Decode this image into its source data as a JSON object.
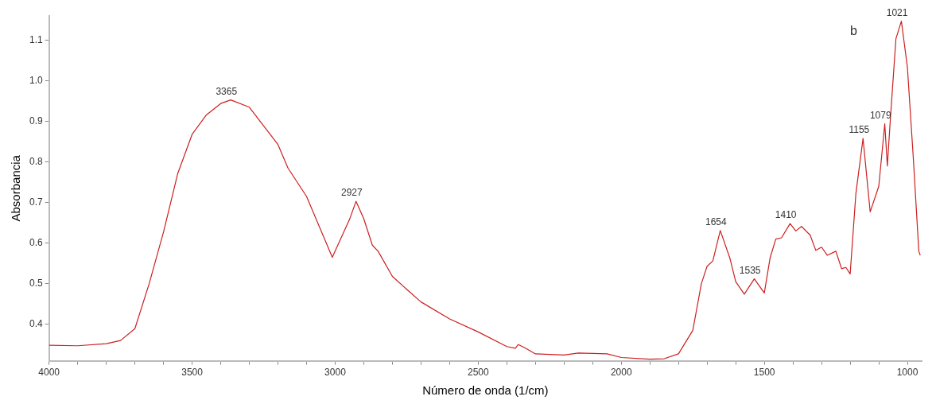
{
  "chart_data": {
    "type": "line",
    "xlabel": "Número de onda (1/cm)",
    "ylabel": "Absorbancia",
    "xlim": [
      4000,
      950
    ],
    "ylim": [
      0.31,
      1.16
    ],
    "xticks": [
      4000,
      {
        "value": 3900,
        "label": null
      },
      {
        "value": 3800,
        "label": null
      },
      {
        "value": 3700,
        "label": null
      },
      {
        "value": 3600,
        "label": null
      },
      3500,
      {
        "value": 3400,
        "label": null
      },
      {
        "value": 3300,
        "label": null
      },
      {
        "value": 3200,
        "label": null
      },
      {
        "value": 3100,
        "label": null
      },
      3000,
      {
        "value": 2900,
        "label": null
      },
      {
        "value": 2800,
        "label": null
      },
      {
        "value": 2700,
        "label": null
      },
      {
        "value": 2600,
        "label": null
      },
      2500,
      {
        "value": 2400,
        "label": null
      },
      {
        "value": 2300,
        "label": null
      },
      {
        "value": 2200,
        "label": null
      },
      {
        "value": 2100,
        "label": null
      },
      2000,
      {
        "value": 1900,
        "label": null
      },
      {
        "value": 1800,
        "label": null
      },
      {
        "value": 1700,
        "label": null
      },
      {
        "value": 1600,
        "label": null
      },
      1500,
      {
        "value": 1400,
        "label": null
      },
      {
        "value": 1300,
        "label": null
      },
      {
        "value": 1200,
        "label": null
      },
      {
        "value": 1100,
        "label": null
      },
      1000
    ],
    "yticks": [
      0.4,
      0.5,
      0.6,
      0.7,
      0.8,
      0.9,
      {
        "value": 1,
        "label": "1.0"
      },
      1.1
    ],
    "marker": "none",
    "line_style": "solid",
    "grid": false,
    "legend": false,
    "series": [
      {
        "color": "#cc1f1f",
        "x": [
          4000,
          3900,
          3800,
          3750,
          3700,
          3650,
          3600,
          3550,
          3500,
          3450,
          3400,
          3365,
          3300,
          3200,
          3165,
          3100,
          3010,
          2950,
          2927,
          2900,
          2870,
          2850,
          2800,
          2750,
          2700,
          2600,
          2500,
          2400,
          2370,
          2360,
          2340,
          2300,
          2200,
          2150,
          2050,
          2000,
          1900,
          1850,
          1800,
          1750,
          1720,
          1700,
          1680,
          1654,
          1620,
          1600,
          1570,
          1535,
          1500,
          1480,
          1460,
          1440,
          1410,
          1390,
          1370,
          1340,
          1320,
          1300,
          1280,
          1250,
          1230,
          1215,
          1200,
          1180,
          1155,
          1130,
          1100,
          1079,
          1070,
          1060,
          1040,
          1021,
          1000,
          980,
          960,
          955
        ],
        "values": [
          0.348,
          0.347,
          0.352,
          0.36,
          0.389,
          0.5,
          0.627,
          0.772,
          0.868,
          0.916,
          0.944,
          0.953,
          0.935,
          0.843,
          0.785,
          0.715,
          0.565,
          0.658,
          0.703,
          0.66,
          0.595,
          0.58,
          0.518,
          0.486,
          0.455,
          0.413,
          0.381,
          0.345,
          0.341,
          0.35,
          0.343,
          0.327,
          0.324,
          0.329,
          0.327,
          0.318,
          0.314,
          0.315,
          0.327,
          0.385,
          0.5,
          0.543,
          0.556,
          0.631,
          0.562,
          0.505,
          0.474,
          0.512,
          0.477,
          0.563,
          0.61,
          0.613,
          0.648,
          0.63,
          0.641,
          0.62,
          0.582,
          0.59,
          0.57,
          0.58,
          0.537,
          0.54,
          0.524,
          0.722,
          0.858,
          0.677,
          0.74,
          0.894,
          0.79,
          0.9,
          1.104,
          1.147,
          1.034,
          0.818,
          0.58,
          0.57
        ]
      }
    ],
    "annotations": [
      {
        "text": "3365",
        "x": 3365,
        "y": 0.953
      },
      {
        "text": "2927",
        "x": 2927,
        "y": 0.703
      },
      {
        "text": "1654",
        "x": 1654,
        "y": 0.631
      },
      {
        "text": "1535",
        "x": 1535,
        "y": 0.512
      },
      {
        "text": "1410",
        "x": 1410,
        "y": 0.648
      },
      {
        "text": "1155",
        "x": 1155,
        "y": 0.858
      },
      {
        "text": "1079",
        "x": 1079,
        "y": 0.894
      },
      {
        "text": "1021",
        "x": 1021,
        "y": 1.147
      },
      "b"
    ]
  }
}
